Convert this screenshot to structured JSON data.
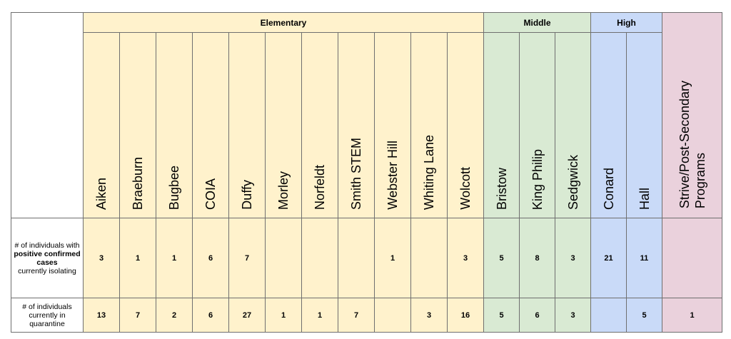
{
  "groups": {
    "elementary": "Elementary",
    "middle": "Middle",
    "high": "High"
  },
  "schools": [
    "Aiken",
    "Braeburn",
    "Bugbee",
    "COIA",
    "Duffy",
    "Morley",
    "Norfeldt",
    "Smith STEM",
    "Webster Hill",
    "Whiting Lane",
    "Wolcott",
    "Bristow",
    "King Philip",
    "Sedgwick",
    "Conard",
    "Hall"
  ],
  "programs": {
    "line1": "Strive/Post-Secondary",
    "line2": "Programs"
  },
  "rows": {
    "positive": {
      "label_pre": "# of individuals with",
      "label_bold": "positive confirmed cases",
      "label_post": "currently isolating",
      "values": [
        "3",
        "1",
        "1",
        "6",
        "7",
        "",
        "",
        "",
        "1",
        "",
        "3",
        "5",
        "8",
        "3",
        "21",
        "11",
        ""
      ]
    },
    "quarantine": {
      "label": "# of individuals currently in quarantine",
      "values": [
        "13",
        "7",
        "2",
        "6",
        "27",
        "1",
        "1",
        "7",
        "",
        "3",
        "16",
        "5",
        "6",
        "3",
        "",
        "5",
        "1"
      ]
    }
  },
  "colors": {
    "elementary": "#fff2cc",
    "middle": "#d9ead3",
    "high": "#c9daf8",
    "programs": "#ead1dc",
    "border": "#6f6f6f"
  }
}
